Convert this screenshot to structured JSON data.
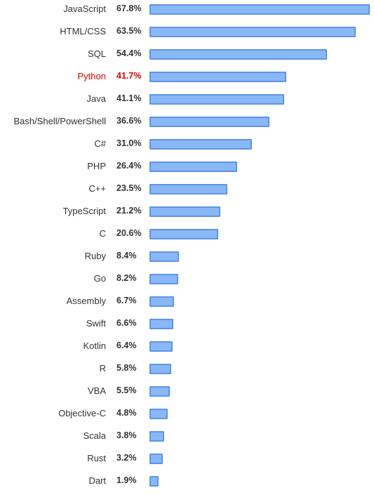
{
  "colors": {
    "bar_fill": "#8ab8f7",
    "bar_border": "#5d95e8",
    "text": "#333333",
    "highlight": "#e00000"
  },
  "chart_data": {
    "type": "bar",
    "orientation": "horizontal",
    "title": "",
    "xlabel": "",
    "ylabel": "",
    "xlim": [
      0,
      67.8
    ],
    "grid": false,
    "legend": "none",
    "value_suffix": "%",
    "highlighted_category": "Python",
    "categories": [
      "JavaScript",
      "HTML/CSS",
      "SQL",
      "Python",
      "Java",
      "Bash/Shell/PowerShell",
      "C#",
      "PHP",
      "C++",
      "TypeScript",
      "C",
      "Ruby",
      "Go",
      "Assembly",
      "Swift",
      "Kotlin",
      "R",
      "VBA",
      "Objective-C",
      "Scala",
      "Rust",
      "Dart"
    ],
    "labels": [
      "67.8%",
      "63.5%",
      "54.4%",
      "41.7%",
      "41.1%",
      "36.6%",
      "31.0%",
      "26.4%",
      "23.5%",
      "21.2%",
      "20.6%",
      "8.4%",
      "8.2%",
      "6.7%",
      "6.6%",
      "6.4%",
      "5.8%",
      "5.5%",
      "4.8%",
      "3.8%",
      "3.2%",
      "1.9%"
    ],
    "values": [
      67.8,
      63.5,
      54.4,
      41.7,
      41.1,
      36.6,
      31.0,
      26.4,
      23.5,
      21.2,
      20.6,
      8.4,
      8.2,
      6.7,
      6.6,
      6.4,
      5.8,
      5.5,
      4.8,
      3.8,
      3.2,
      1.9
    ]
  }
}
